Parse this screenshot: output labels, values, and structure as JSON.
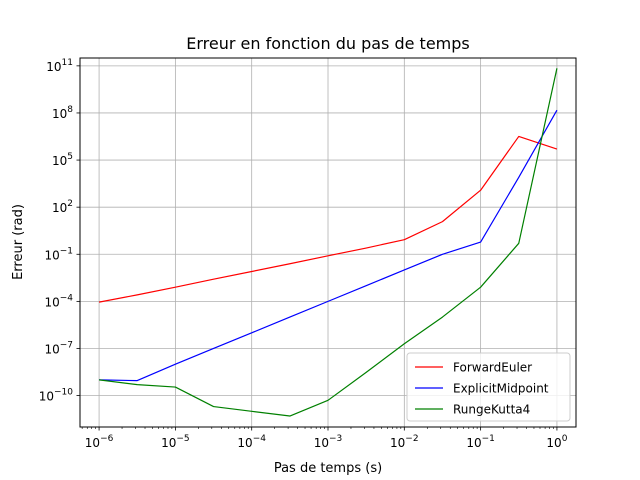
{
  "chart_data": {
    "type": "line",
    "title": "Erreur en fonction du pas de temps",
    "xlabel": "Pas de temps (s)",
    "ylabel": "Erreur (rad)",
    "xscale": "log",
    "yscale": "log",
    "xlim": [
      5.623e-07,
      1.778
    ],
    "ylim": [
      1e-12,
      316200000000.0
    ],
    "xticks": [
      {
        "exp": -6,
        "label_base": "10",
        "label_exp": "−6"
      },
      {
        "exp": -5,
        "label_base": "10",
        "label_exp": "−5"
      },
      {
        "exp": -4,
        "label_base": "10",
        "label_exp": "−4"
      },
      {
        "exp": -3,
        "label_base": "10",
        "label_exp": "−3"
      },
      {
        "exp": -2,
        "label_base": "10",
        "label_exp": "−2"
      },
      {
        "exp": -1,
        "label_base": "10",
        "label_exp": "−1"
      },
      {
        "exp": 0,
        "label_base": "10",
        "label_exp": "0"
      }
    ],
    "yticks": [
      {
        "exp": -10,
        "label_base": "10",
        "label_exp": "−10"
      },
      {
        "exp": -7,
        "label_base": "10",
        "label_exp": "−7"
      },
      {
        "exp": -4,
        "label_base": "10",
        "label_exp": "−4"
      },
      {
        "exp": -1,
        "label_base": "10",
        "label_exp": "−1"
      },
      {
        "exp": 2,
        "label_base": "10",
        "label_exp": "2"
      },
      {
        "exp": 5,
        "label_base": "10",
        "label_exp": "5"
      },
      {
        "exp": 8,
        "label_base": "10",
        "label_exp": "8"
      },
      {
        "exp": 11,
        "label_base": "10",
        "label_exp": "11"
      }
    ],
    "grid": true,
    "legend_position": "bottom-right",
    "x": [
      1e-06,
      3.162e-06,
      1e-05,
      3.162e-05,
      0.0001,
      0.0003162,
      0.001,
      0.003162,
      0.01,
      0.03162,
      0.1,
      0.3162,
      1
    ],
    "series": [
      {
        "name": "ForwardEuler",
        "color": "#ff0000",
        "values": [
          9e-05,
          0.00026,
          0.0008,
          0.0026,
          0.008,
          0.025,
          0.08,
          0.25,
          0.85,
          12,
          1200.0,
          3200000.0,
          500000.0
        ]
      },
      {
        "name": "ExplicitMidpoint",
        "color": "#0000ff",
        "values": [
          1e-09,
          9e-10,
          1e-08,
          1e-07,
          1e-06,
          1e-05,
          0.0001,
          0.001,
          0.01,
          0.1,
          0.6,
          8000.0,
          150000000.0
        ]
      },
      {
        "name": "RungeKutta4",
        "color": "#008000",
        "values": [
          1e-09,
          5e-10,
          3.5e-10,
          2e-11,
          1e-11,
          5e-12,
          5e-11,
          3e-09,
          2e-07,
          1e-05,
          0.0008,
          0.5,
          70000000000.0
        ]
      }
    ]
  }
}
